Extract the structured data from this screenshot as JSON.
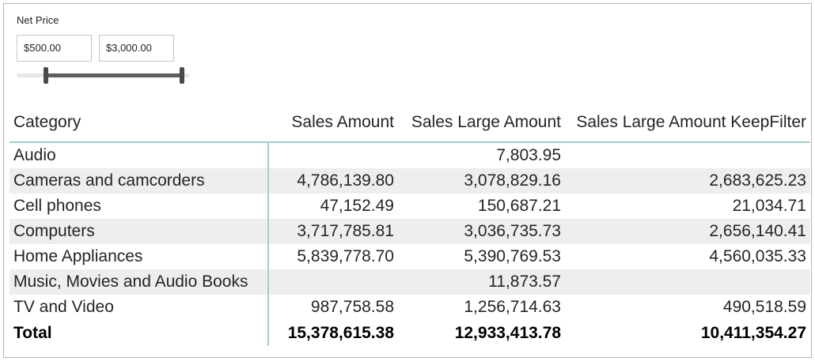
{
  "slicer": {
    "title": "Net Price",
    "min_value": "$500.00",
    "max_value": "$3,000.00",
    "range_fraction": [
      0.17,
      0.96
    ]
  },
  "table": {
    "headers": [
      "Category",
      "Sales Amount",
      "Sales Large Amount",
      "Sales Large Amount KeepFilter"
    ],
    "rows": [
      {
        "category": "Audio",
        "sales_amount": "",
        "sales_large_amount": "7,803.95",
        "sales_large_keepfilter": ""
      },
      {
        "category": "Cameras and camcorders",
        "sales_amount": "4,786,139.80",
        "sales_large_amount": "3,078,829.16",
        "sales_large_keepfilter": "2,683,625.23"
      },
      {
        "category": "Cell phones",
        "sales_amount": "47,152.49",
        "sales_large_amount": "150,687.21",
        "sales_large_keepfilter": "21,034.71"
      },
      {
        "category": "Computers",
        "sales_amount": "3,717,785.81",
        "sales_large_amount": "3,036,735.73",
        "sales_large_keepfilter": "2,656,140.41"
      },
      {
        "category": "Home Appliances",
        "sales_amount": "5,839,778.70",
        "sales_large_amount": "5,390,769.53",
        "sales_large_keepfilter": "4,560,035.33"
      },
      {
        "category": "Music, Movies and Audio Books",
        "sales_amount": "",
        "sales_large_amount": "11,873.57",
        "sales_large_keepfilter": ""
      },
      {
        "category": "TV and Video",
        "sales_amount": "987,758.58",
        "sales_large_amount": "1,256,714.63",
        "sales_large_keepfilter": "490,518.59"
      }
    ],
    "total": {
      "category": "Total",
      "sales_amount": "15,378,615.38",
      "sales_large_amount": "12,933,413.78",
      "sales_large_keepfilter": "10,411,354.27"
    }
  },
  "colors": {
    "accent_line": "#9ecfcb",
    "row_alt": "#eeeeee",
    "slider_handle": "#4a4a4a"
  }
}
